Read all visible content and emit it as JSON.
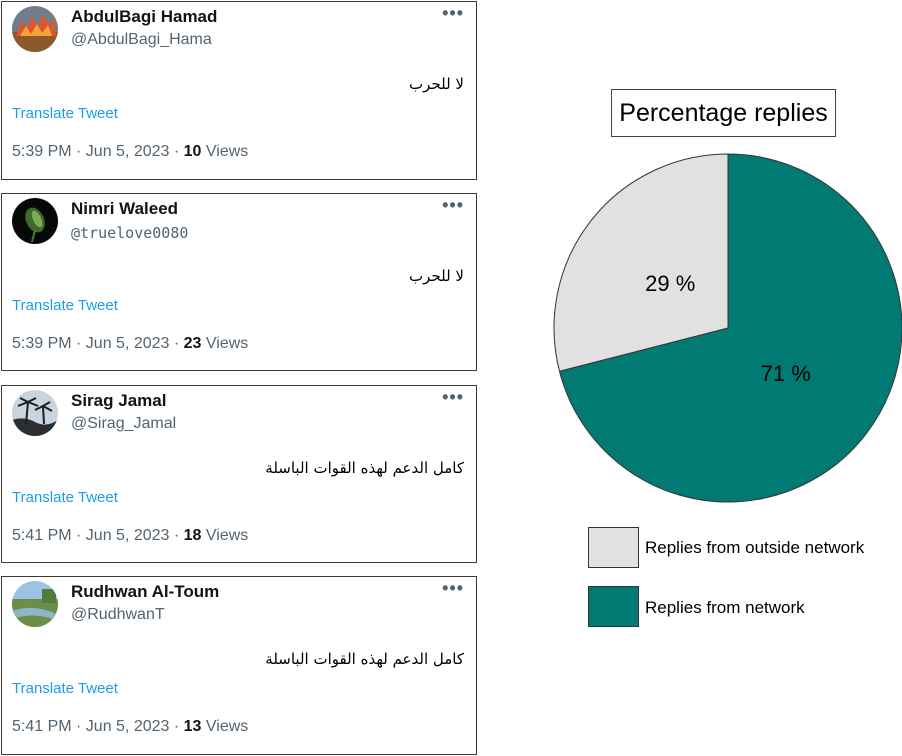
{
  "tweets": [
    {
      "name": "AbdulBagi Hamad",
      "handle": "@AbdulBagi_Hama",
      "content": "لا للحرب",
      "translate_label": "Translate Tweet",
      "time_date": "5:39 PM · Jun 5, 2023 · ",
      "views_count": "10",
      "views_label": " Views",
      "more_icon": "more-horizontal-icon"
    },
    {
      "name": "Nimri Waleed",
      "handle": "@truelove0080",
      "content": "لا للحرب",
      "translate_label": "Translate Tweet",
      "time_date": "5:39 PM · Jun 5, 2023 · ",
      "views_count": "23",
      "views_label": " Views",
      "more_icon": "more-horizontal-icon"
    },
    {
      "name": "Sirag Jamal",
      "handle": "@Sirag_Jamal",
      "content": "كامل الدعم لهذه القوات الباسلة",
      "translate_label": "Translate Tweet",
      "time_date": "5:41 PM · Jun 5, 2023 · ",
      "views_count": "18",
      "views_label": " Views",
      "more_icon": "more-horizontal-icon"
    },
    {
      "name": "Rudhwan Al-Toum",
      "handle": "@RudhwanT",
      "content": "كامل الدعم لهذه القوات الباسلة",
      "translate_label": "Translate Tweet",
      "time_date": "5:41 PM · Jun 5, 2023 · ",
      "views_count": "13",
      "views_label": " Views",
      "more_icon": "more-horizontal-icon"
    }
  ],
  "more_glyph": "•••",
  "chart_data": {
    "type": "pie",
    "title": "Percentage replies",
    "slices": [
      {
        "label": "Replies from network",
        "value": 71,
        "display": "71 %",
        "color": "#007a73"
      },
      {
        "label": "Replies from outside network",
        "value": 29,
        "display": "29 %",
        "color": "#e1e1e1"
      }
    ],
    "legend": [
      {
        "label": "Replies from outside network",
        "color": "#e1e1e1"
      },
      {
        "label": "Replies from network",
        "color": "#007a73"
      }
    ],
    "legend_position": "bottom"
  }
}
